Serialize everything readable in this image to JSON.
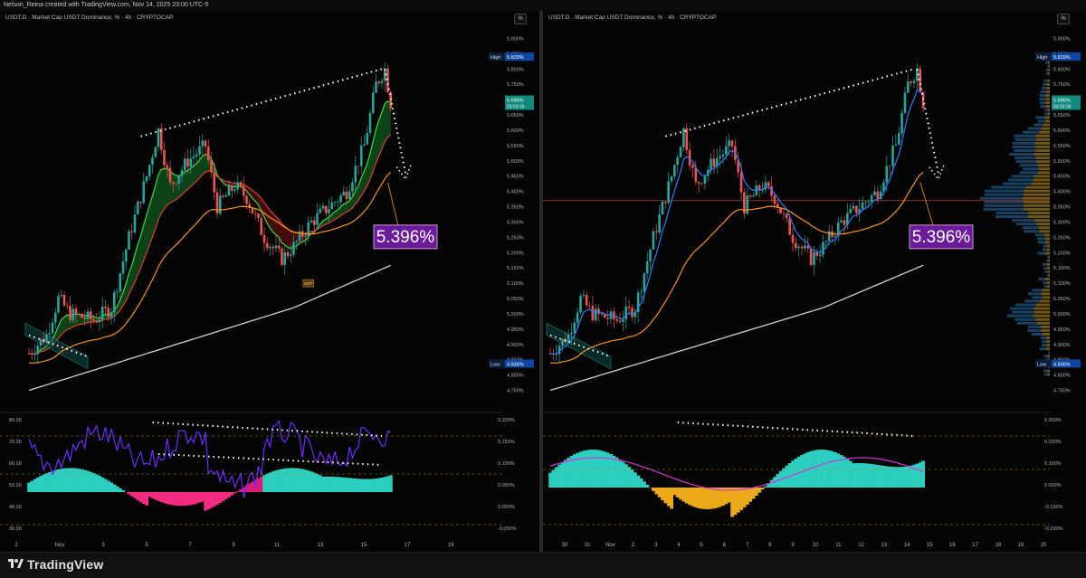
{
  "header": {
    "text": "Nelson_Reina created with TradingView.com, Nov 14, 2025 23:00 UTC-5"
  },
  "left_panel": {
    "title": "USDT.D · Market Cap USDT Dominance, % · 4h · CRYPTOCAP",
    "pct_button": "%",
    "value_callout": "5.396%",
    "high_label": "High",
    "high_value": "5.839%",
    "low_label": "Low",
    "low_value": "4.836%",
    "last_value": "5.696%",
    "countdown": "03:59:39",
    "price_ticks": [
      "5.900%",
      "5.850%",
      "5.800%",
      "5.750%",
      "5.700%",
      "5.650%",
      "5.600%",
      "5.550%",
      "5.500%",
      "5.450%",
      "5.400%",
      "5.350%",
      "5.300%",
      "5.250%",
      "5.200%",
      "5.150%",
      "5.100%",
      "5.050%",
      "5.000%",
      "4.950%",
      "4.900%",
      "4.850%",
      "4.800%",
      "4.750%"
    ],
    "osc_left_ticks": [
      "80.00",
      "70.00",
      "60.00",
      "50.00",
      "40.00",
      "30.00"
    ],
    "osc_right_ticks": [
      "0.200%",
      "0.150%",
      "0.100%",
      "0.050%",
      "0.000%",
      "-0.050%"
    ],
    "x_ticks": [
      "2",
      "Nov",
      "3",
      "5",
      "7",
      "9",
      "11",
      "13",
      "15",
      "17",
      "19"
    ],
    "event_badge": "NFP"
  },
  "right_panel": {
    "title": "USDT.D · Market Cap USDT Dominance, % · 4h · CRYPTOCAP",
    "pct_button": "%",
    "value_callout": "5.396%",
    "high_label": "High",
    "high_value": "5.839%",
    "low_label": "Low",
    "low_value": "4.836%",
    "last_value": "5.696%",
    "countdown": "03:59:39",
    "price_ticks": [
      "5.900%",
      "5.850%",
      "5.800%",
      "5.750%",
      "5.700%",
      "5.650%",
      "5.600%",
      "5.550%",
      "5.500%",
      "5.450%",
      "5.400%",
      "5.350%",
      "5.300%",
      "5.250%",
      "5.200%",
      "5.150%",
      "5.100%",
      "5.050%",
      "5.000%",
      "4.950%",
      "4.900%",
      "4.850%",
      "4.800%",
      "4.750%"
    ],
    "osc_right_ticks": [
      "0.300%",
      "0.200%",
      "0.100%",
      "0.000%",
      "-0.100%",
      "-0.200%"
    ],
    "x_ticks": [
      "30",
      "31",
      "Nov",
      "2",
      "3",
      "4",
      "5",
      "6",
      "7",
      "8",
      "9",
      "10",
      "11",
      "12",
      "13",
      "14",
      "15",
      "16",
      "17",
      "18",
      "19",
      "20"
    ]
  },
  "footer": {
    "brand": "TradingView"
  },
  "colors": {
    "up": "#26a69a",
    "down": "#ef5350",
    "ema_orange": "#f7931a",
    "ema_white": "#d0d0d0",
    "callout": "#6a1b9a",
    "osc_cyan": "#2ed8c8",
    "osc_pink": "#e91e7a",
    "osc_yellow": "#ffc107",
    "rsi_purple": "#6a2cff",
    "blue_ma": "#2f7bff",
    "magenta": "#d633d6"
  }
}
